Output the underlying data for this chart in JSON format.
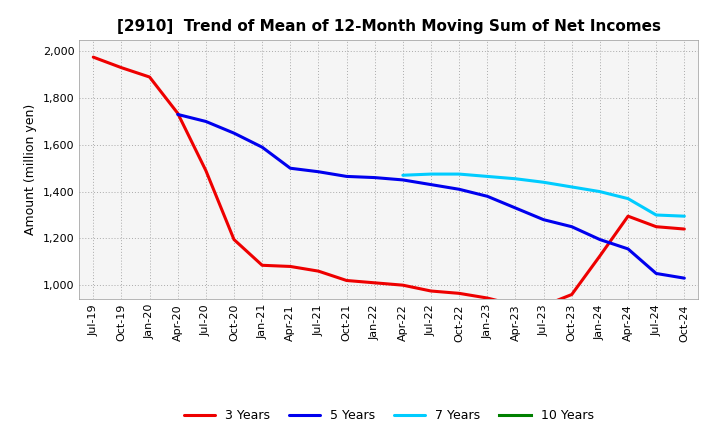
{
  "title": "[2910]  Trend of Mean of 12-Month Moving Sum of Net Incomes",
  "ylabel": "Amount (million yen)",
  "background_color": "#ffffff",
  "plot_bg_color": "#f5f5f5",
  "grid_color": "#aaaaaa",
  "ylim": [
    940,
    2050
  ],
  "yticks": [
    1000,
    1200,
    1400,
    1600,
    1800,
    2000
  ],
  "series": {
    "3 Years": {
      "color": "#ee0000",
      "xs": [
        0,
        1,
        2,
        3,
        4,
        5,
        6,
        7,
        8,
        9,
        10,
        11,
        12,
        13,
        14,
        15,
        16,
        17,
        18,
        19,
        20,
        21
      ],
      "values": [
        1975,
        1930,
        1890,
        1735,
        1490,
        1195,
        1085,
        1080,
        1060,
        1020,
        1010,
        1000,
        975,
        965,
        945,
        915,
        912,
        960,
        1125,
        1295,
        1250,
        1240
      ]
    },
    "5 Years": {
      "color": "#0000ee",
      "xs": [
        3,
        4,
        5,
        6,
        7,
        8,
        9,
        10,
        11,
        12,
        13,
        14,
        15,
        16,
        17,
        18,
        19,
        20,
        21
      ],
      "values": [
        1730,
        1700,
        1650,
        1590,
        1500,
        1485,
        1465,
        1460,
        1450,
        1430,
        1410,
        1380,
        1330,
        1280,
        1250,
        1195,
        1155,
        1050,
        1030
      ]
    },
    "7 Years": {
      "color": "#00ccff",
      "xs": [
        11,
        12,
        13,
        14,
        15,
        16,
        17,
        18,
        19,
        20,
        21
      ],
      "values": [
        1470,
        1475,
        1475,
        1465,
        1455,
        1440,
        1420,
        1400,
        1370,
        1300,
        1295
      ]
    },
    "10 Years": {
      "color": "#008000",
      "xs": [],
      "values": []
    }
  },
  "xtick_labels": [
    "Jul-19",
    "Oct-19",
    "Jan-20",
    "Apr-20",
    "Jul-20",
    "Oct-20",
    "Jan-21",
    "Apr-21",
    "Jul-21",
    "Oct-21",
    "Jan-22",
    "Apr-22",
    "Jul-22",
    "Oct-22",
    "Jan-23",
    "Apr-23",
    "Jul-23",
    "Oct-23",
    "Jan-24",
    "Apr-24",
    "Jul-24",
    "Oct-24"
  ],
  "legend_order": [
    "3 Years",
    "5 Years",
    "7 Years",
    "10 Years"
  ],
  "title_fontsize": 11,
  "ylabel_fontsize": 9,
  "tick_fontsize": 8,
  "legend_fontsize": 9,
  "linewidth": 2.2
}
